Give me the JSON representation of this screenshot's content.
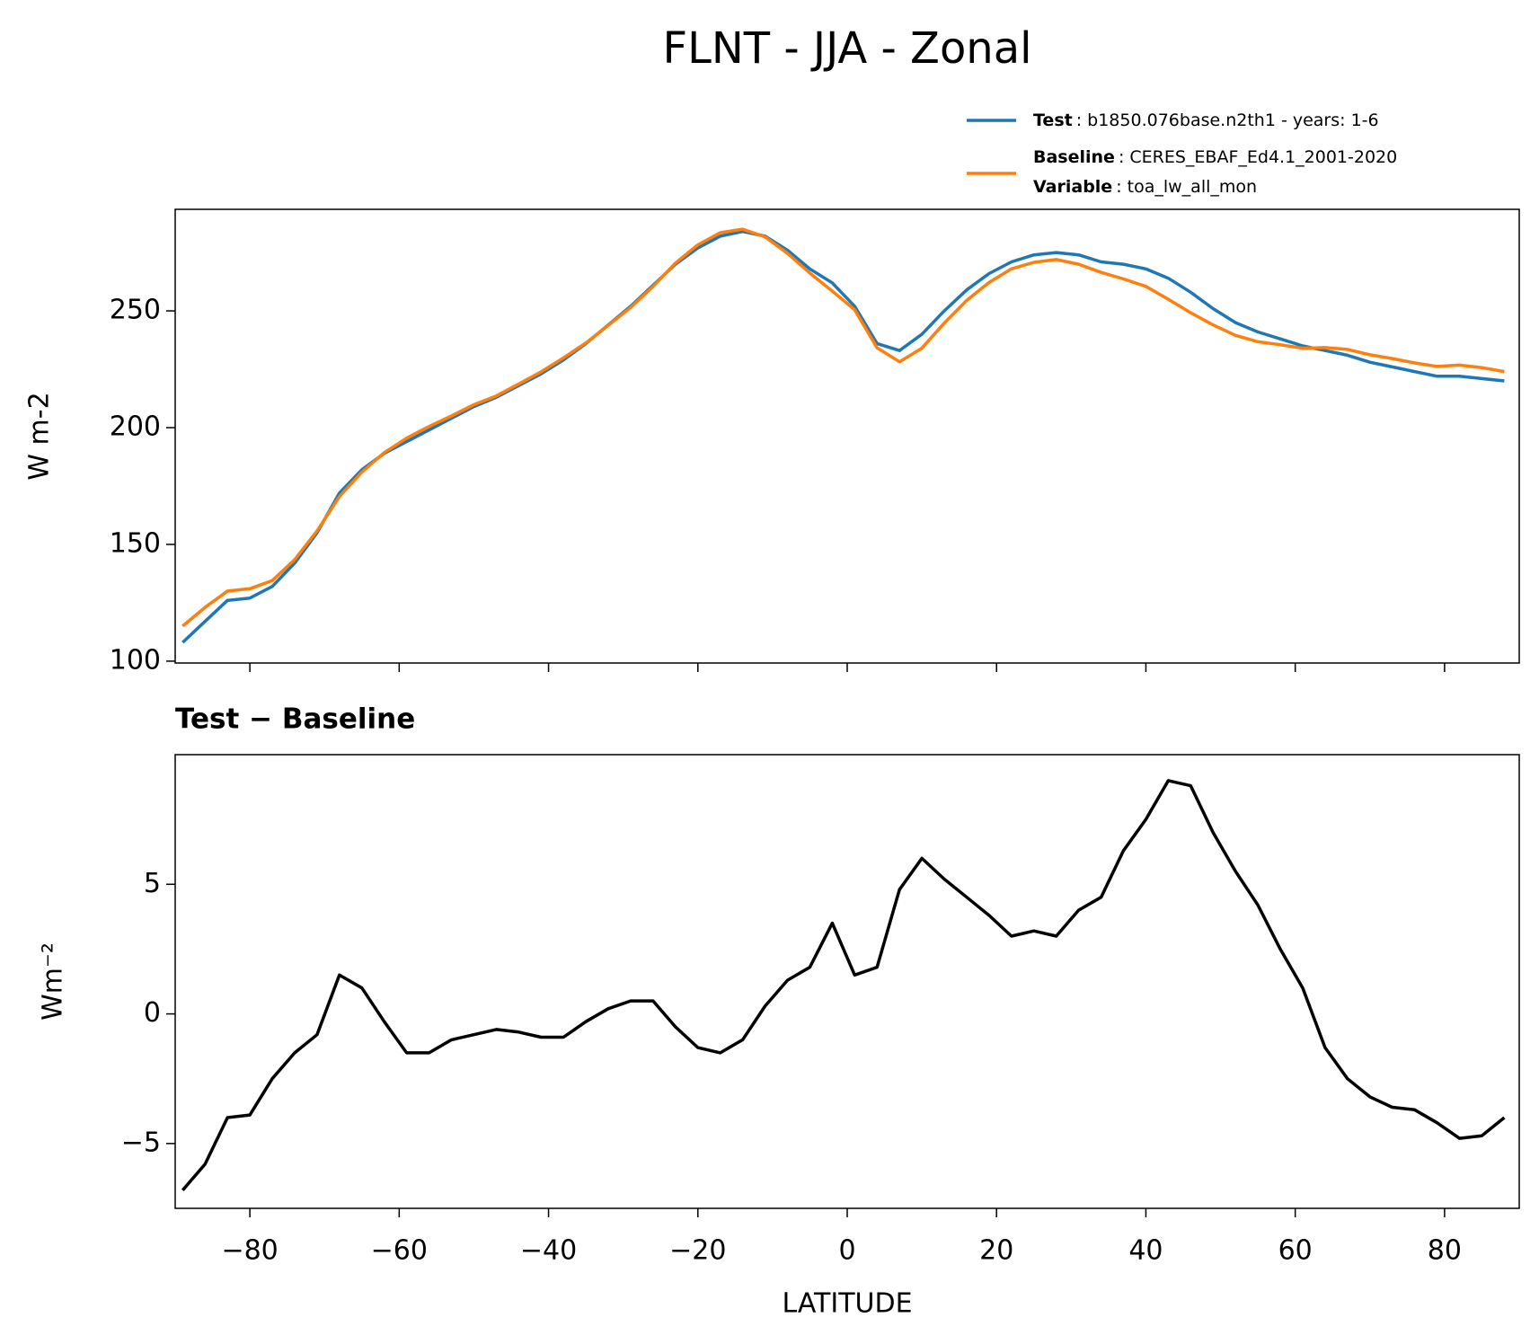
{
  "chart_data": [
    {
      "type": "line",
      "title": "FLNT - JJA - Zonal",
      "ylabel": "W m-2",
      "x": [
        -89,
        -86,
        -83,
        -80,
        -77,
        -74,
        -71,
        -68,
        -65,
        -62,
        -59,
        -56,
        -53,
        -50,
        -47,
        -44,
        -41,
        -38,
        -35,
        -32,
        -29,
        -26,
        -23,
        -20,
        -17,
        -14,
        -11,
        -8,
        -5,
        -2,
        1,
        4,
        7,
        10,
        13,
        16,
        19,
        22,
        25,
        28,
        31,
        34,
        37,
        40,
        43,
        46,
        49,
        52,
        55,
        58,
        61,
        64,
        67,
        70,
        73,
        76,
        79,
        82,
        85,
        88
      ],
      "series": [
        {
          "name": "Test",
          "detail": ": b1850.076base.n2th1 - years: 1-6",
          "color": "#1f77b4",
          "values": [
            108,
            117,
            126,
            127,
            132,
            142,
            155,
            172,
            182,
            189,
            194,
            199,
            204,
            209,
            213,
            218,
            223,
            229,
            236,
            244,
            252,
            261,
            270,
            277,
            282,
            284,
            282,
            276,
            268,
            262,
            252,
            236,
            233,
            240,
            250,
            259,
            266,
            271,
            274,
            275,
            274,
            271,
            270,
            268,
            264,
            258,
            251,
            245,
            241,
            238,
            235,
            233,
            231,
            228,
            226,
            224,
            222,
            222,
            221,
            220
          ]
        },
        {
          "name": "Baseline",
          "detail": ": CERES_EBAF_Ed4.1_2001-2020",
          "extra_name": "Variable",
          "extra_detail": ": toa_lw_all_mon",
          "color": "#ff7f0e",
          "values": [
            115,
            123,
            130,
            131,
            134.5,
            143.5,
            155.8,
            170.5,
            181,
            189.3,
            195.5,
            200.5,
            205,
            209.8,
            213.6,
            218.7,
            223.9,
            229.9,
            236.3,
            243.8,
            251.5,
            260.5,
            270.5,
            278.3,
            283.5,
            285,
            281.7,
            274.7,
            266.2,
            258.5,
            250.5,
            234.2,
            228.2,
            234,
            244.8,
            254.5,
            262.2,
            268,
            270.8,
            272,
            270,
            266.5,
            263.7,
            260.5,
            255,
            249.2,
            244,
            239.5,
            236.8,
            235.5,
            234,
            234.3,
            233.5,
            231.2,
            229.6,
            227.7,
            226.2,
            226.8,
            225.7,
            224
          ]
        }
      ],
      "xlim": [
        -90,
        90
      ],
      "xticks": [
        -80,
        -60,
        -40,
        -20,
        0,
        20,
        40,
        60,
        80
      ],
      "ylim": [
        99.2,
        293.5
      ],
      "yticks": [
        100,
        150,
        200,
        250
      ]
    },
    {
      "type": "line",
      "title": "Test − Baseline",
      "ylabel": "Wm⁻²",
      "xlabel": "LATITUDE",
      "x": [
        -89,
        -86,
        -83,
        -80,
        -77,
        -74,
        -71,
        -68,
        -65,
        -62,
        -59,
        -56,
        -53,
        -50,
        -47,
        -44,
        -41,
        -38,
        -35,
        -32,
        -29,
        -26,
        -23,
        -20,
        -17,
        -14,
        -11,
        -8,
        -5,
        -2,
        1,
        4,
        7,
        10,
        13,
        16,
        19,
        22,
        25,
        28,
        31,
        34,
        37,
        40,
        43,
        46,
        49,
        52,
        55,
        58,
        61,
        64,
        67,
        70,
        73,
        76,
        79,
        82,
        85,
        88
      ],
      "color": "#000000",
      "values": [
        -6.8,
        -5.8,
        -4,
        -3.9,
        -2.5,
        -1.5,
        -0.8,
        1.5,
        1.0,
        -0.3,
        -1.5,
        -1.5,
        -1.0,
        -0.8,
        -0.6,
        -0.7,
        -0.9,
        -0.9,
        -0.3,
        0.2,
        0.5,
        0.5,
        -0.5,
        -1.3,
        -1.5,
        -1.0,
        0.3,
        1.3,
        1.8,
        3.5,
        1.5,
        1.8,
        4.8,
        6.0,
        5.2,
        4.5,
        3.8,
        3.0,
        3.2,
        3.0,
        4.0,
        4.5,
        6.3,
        7.5,
        9.0,
        8.8,
        7.0,
        5.5,
        4.2,
        2.5,
        1.0,
        -1.3,
        -2.5,
        -3.2,
        -3.6,
        -3.7,
        -4.2,
        -4.8,
        -4.7,
        -4.0
      ],
      "xlim": [
        -90,
        90
      ],
      "xticks": [
        {
          "value": -80,
          "label": "−80"
        },
        {
          "value": -60,
          "label": "−60"
        },
        {
          "value": -40,
          "label": "−40"
        },
        {
          "value": -20,
          "label": "−20"
        },
        0,
        20,
        40,
        60,
        80
      ],
      "ylim": [
        -7.5,
        10
      ],
      "yticks": [
        {
          "value": -5,
          "label": "−5"
        },
        0,
        5
      ]
    }
  ]
}
